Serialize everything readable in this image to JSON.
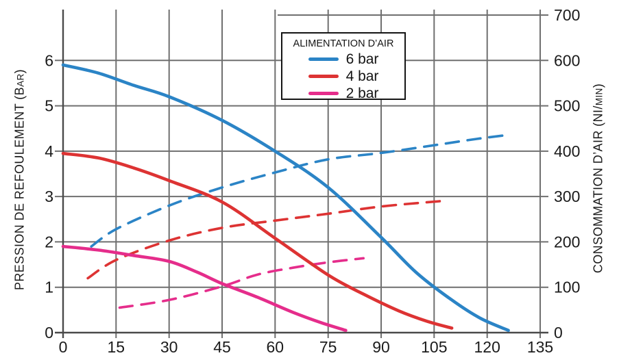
{
  "chart_data": {
    "type": "line",
    "title": "",
    "grid": true,
    "grid_color": "#6f6f6f",
    "axis_color": "#4a4a4a",
    "text_color": "#1b1b1b",
    "x_ticks": [
      0,
      15,
      30,
      45,
      60,
      75,
      90,
      105,
      120,
      135
    ],
    "x_max": 135,
    "left_axis": {
      "title": "PRESSION DE REFOULEMENT (BAR)",
      "title_main": "PRESSION DE REFOULEMENT (B",
      "title_small": "AR",
      "title_end": ")",
      "ticks": [
        0,
        1,
        2,
        3,
        4,
        5,
        6
      ],
      "max": 7
    },
    "right_axis": {
      "title": "CONSOMMATION D’AIR (NI/MIN)",
      "title_main": "CONSOMMATION D’AIR (NI/",
      "title_small": "MIN",
      "title_end": ")",
      "ticks": [
        0,
        100,
        200,
        300,
        400,
        500,
        600,
        700
      ],
      "max": 700
    },
    "legend": {
      "title": "ALIMENTATION D’AIR",
      "position": "top-center",
      "entries": [
        {
          "label": "6 bar",
          "color": "#2b84c6"
        },
        {
          "label": "4 bar",
          "color": "#dd3333"
        },
        {
          "label": "2 bar",
          "color": "#e52d8b"
        }
      ]
    },
    "series": [
      {
        "name": "6 bar",
        "kind": "pression",
        "axis": "left",
        "style": "solid",
        "color": "#2b84c6",
        "points": [
          [
            0,
            5.9
          ],
          [
            10,
            5.72
          ],
          [
            20,
            5.45
          ],
          [
            30,
            5.2
          ],
          [
            45,
            4.68
          ],
          [
            60,
            4.0
          ],
          [
            75,
            3.2
          ],
          [
            90,
            2.1
          ],
          [
            100,
            1.32
          ],
          [
            110,
            0.72
          ],
          [
            118,
            0.32
          ],
          [
            126,
            0.05
          ]
        ]
      },
      {
        "name": "4 bar",
        "kind": "pression",
        "axis": "left",
        "style": "solid",
        "color": "#dd3333",
        "points": [
          [
            0,
            3.95
          ],
          [
            10,
            3.85
          ],
          [
            20,
            3.63
          ],
          [
            30,
            3.35
          ],
          [
            45,
            2.88
          ],
          [
            60,
            2.08
          ],
          [
            75,
            1.27
          ],
          [
            85,
            0.85
          ],
          [
            95,
            0.48
          ],
          [
            103,
            0.25
          ],
          [
            110,
            0.1
          ]
        ]
      },
      {
        "name": "2 bar",
        "kind": "pression",
        "axis": "left",
        "style": "solid",
        "color": "#e52d8b",
        "points": [
          [
            0,
            1.9
          ],
          [
            10,
            1.82
          ],
          [
            20,
            1.7
          ],
          [
            30,
            1.57
          ],
          [
            38,
            1.33
          ],
          [
            45,
            1.08
          ],
          [
            55,
            0.78
          ],
          [
            65,
            0.45
          ],
          [
            73,
            0.22
          ],
          [
            80,
            0.05
          ]
        ]
      },
      {
        "name": "6 bar",
        "kind": "consommation",
        "axis": "right",
        "style": "dashed",
        "color": "#2b84c6",
        "points": [
          [
            8,
            190
          ],
          [
            15,
            228
          ],
          [
            30,
            280
          ],
          [
            45,
            320
          ],
          [
            60,
            353
          ],
          [
            75,
            382
          ],
          [
            90,
            396
          ],
          [
            105,
            413
          ],
          [
            117,
            427
          ],
          [
            125,
            435
          ]
        ]
      },
      {
        "name": "4 bar",
        "kind": "consommation",
        "axis": "right",
        "style": "dashed",
        "color": "#dd3333",
        "points": [
          [
            7,
            120
          ],
          [
            15,
            160
          ],
          [
            30,
            203
          ],
          [
            45,
            231
          ],
          [
            60,
            247
          ],
          [
            75,
            262
          ],
          [
            90,
            278
          ],
          [
            107,
            290
          ]
        ]
      },
      {
        "name": "2 bar",
        "kind": "consommation",
        "axis": "right",
        "style": "dashed",
        "color": "#e52d8b",
        "points": [
          [
            16,
            55
          ],
          [
            30,
            72
          ],
          [
            45,
            102
          ],
          [
            55,
            128
          ],
          [
            65,
            143
          ],
          [
            75,
            155
          ],
          [
            85,
            164
          ]
        ]
      }
    ]
  }
}
